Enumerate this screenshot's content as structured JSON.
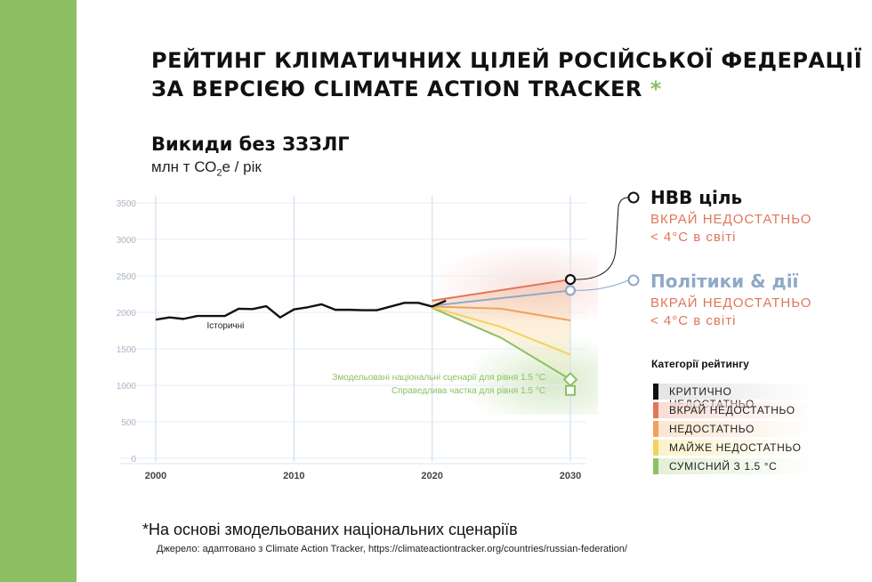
{
  "title_line1": "РЕЙТИНГ КЛІМАТИЧНИХ ЦІЛЕЙ РОСІЙСЬКОЇ ФЕДЕРАЦІЇ",
  "title_line2": "ЗА ВЕРСІЄЮ CLIMATE ACTION TRACKER",
  "title_asterisk": "*",
  "chart_data": {
    "type": "line",
    "title": "Викиди без ЗЗЗЛГ",
    "ylabel_prefix": "млн т СО",
    "ylabel_sub": "2",
    "ylabel_suffix": "е / рік",
    "xlim": [
      2000,
      2030
    ],
    "ylim": [
      0,
      3500
    ],
    "x_ticks": [
      "2000",
      "2010",
      "2020",
      "2030"
    ],
    "y_ticks": [
      "0",
      "500",
      "1000",
      "1500",
      "2000",
      "2500",
      "3000",
      "3500"
    ],
    "series": [
      {
        "name": "Історичні",
        "color": "#111111",
        "points": [
          [
            2000,
            1900
          ],
          [
            2001,
            1930
          ],
          [
            2002,
            1910
          ],
          [
            2003,
            1950
          ],
          [
            2004,
            1950
          ],
          [
            2005,
            1950
          ],
          [
            2006,
            2050
          ],
          [
            2007,
            2045
          ],
          [
            2008,
            2085
          ],
          [
            2009,
            1930
          ],
          [
            2010,
            2040
          ],
          [
            2011,
            2070
          ],
          [
            2012,
            2110
          ],
          [
            2013,
            2035
          ],
          [
            2014,
            2035
          ],
          [
            2015,
            2030
          ],
          [
            2016,
            2030
          ],
          [
            2017,
            2080
          ],
          [
            2018,
            2130
          ],
          [
            2019,
            2130
          ],
          [
            2020,
            2080
          ],
          [
            2021,
            2160
          ]
        ]
      },
      {
        "name": "НВВ ціль",
        "color": "#e0765a",
        "points": [
          [
            2020,
            2160
          ],
          [
            2030,
            2450
          ]
        ]
      },
      {
        "name": "Політики & дії",
        "color": "#8fa9c6",
        "points": [
          [
            2020,
            2090
          ],
          [
            2030,
            2300
          ]
        ]
      },
      {
        "name": "НЕДОСТАТНЬО",
        "color": "#efa25a",
        "points": [
          [
            2020,
            2080
          ],
          [
            2025,
            2050
          ],
          [
            2030,
            1890
          ]
        ]
      },
      {
        "name": "МАЙЖЕ НЕДОСТАТНЬО",
        "color": "#f2d45a",
        "points": [
          [
            2020,
            2070
          ],
          [
            2025,
            1800
          ],
          [
            2030,
            1420
          ]
        ]
      },
      {
        "name": "СУМІСНИЙ З 1.5 °C",
        "color": "#8dc063",
        "points": [
          [
            2020,
            2060
          ],
          [
            2025,
            1650
          ],
          [
            2030,
            1080
          ]
        ]
      }
    ],
    "markers": {
      "ndc_target": {
        "x": 2030,
        "y": 2450
      },
      "policies": {
        "x": 2030,
        "y": 2300
      },
      "modelled_15": {
        "x": 2030,
        "y": 1080
      },
      "fair_share_15": {
        "x": 2030,
        "y": 930
      }
    },
    "annotations": {
      "historic": "Історичні",
      "modelled": "Змодельовані національні сценарії для рівня 1.5 °C",
      "fair_share": "Справедлива частка для рівня 1.5 °C"
    }
  },
  "labels": {
    "ndc_title": "НВВ ціль",
    "ndc_rating": "ВКРАЙ НЕДОСТАТНЬО",
    "ndc_temp": "< 4°C в світі",
    "pol_title": "Політики & дії",
    "pol_rating": "ВКРАЙ НЕДОСТАТНЬО",
    "pol_temp": "< 4°C в світі"
  },
  "legend": {
    "title": "Категорії рейтингу",
    "items": [
      {
        "label": "КРИТИЧНО НЕДОСТАТНЬО",
        "color": "#111111",
        "tint": "#e4e4e4"
      },
      {
        "label": "ВКРАЙ НЕДОСТАТНЬО",
        "color": "#e0765a",
        "tint": "#f8ddd4"
      },
      {
        "label": "НЕДОСТАТНЬО",
        "color": "#efa25a",
        "tint": "#fbe6d0"
      },
      {
        "label": "МАЙЖЕ НЕДОСТАТНЬО",
        "color": "#f2d45a",
        "tint": "#fbf2cc"
      },
      {
        "label": "СУМІСНИЙ З 1.5 °C",
        "color": "#8dc063",
        "tint": "#e3f0d6"
      }
    ]
  },
  "footnote": "*На основі змодельованих національних сценаріїв",
  "source": "Джерело: адаптовано з Climate Action Tracker, https://climateactiontracker.org/countries/russian-federation/",
  "colors": {
    "accent": "#8dc063",
    "rating_text": "#e0765a",
    "policy_blue": "#8fa9c6",
    "grid": "#cfe0f0"
  }
}
